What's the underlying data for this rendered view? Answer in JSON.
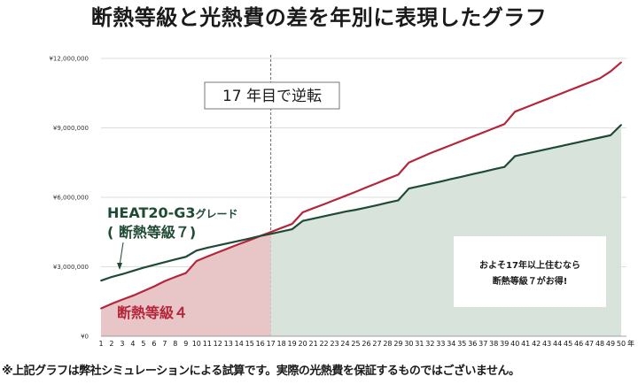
{
  "title": "断熱等級と光熱費の差を年別に表現したグラフ",
  "footnote": "※上記グラフは弊社シミュレーションによる試算です。実際の光熱費を保証するものではございません。",
  "chart_data": {
    "type": "area",
    "categories": [
      "1",
      "2",
      "3",
      "4",
      "5",
      "6",
      "7",
      "8",
      "9",
      "10",
      "11",
      "12",
      "13",
      "14",
      "15",
      "16",
      "17",
      "18",
      "19",
      "20",
      "21",
      "22",
      "23",
      "24",
      "25",
      "26",
      "27",
      "28",
      "29",
      "30",
      "31",
      "32",
      "33",
      "34",
      "35",
      "36",
      "37",
      "38",
      "39",
      "40",
      "41",
      "42",
      "43",
      "44",
      "45",
      "46",
      "47",
      "48",
      "49",
      "50"
    ],
    "x_unit_label": "年",
    "y_tick_labels": [
      "¥0",
      "¥3,000,000",
      "¥6,000,000",
      "¥9,000,000",
      "¥12,000,000"
    ],
    "ylim": [
      0,
      12000000
    ],
    "series": [
      {
        "name": "断熱等級４",
        "color": "#b5263a",
        "fill": "#e8c6c8",
        "values": [
          1200000,
          1400000,
          1580000,
          1750000,
          1950000,
          2150000,
          2380000,
          2560000,
          2730000,
          3250000,
          3440000,
          3620000,
          3800000,
          3980000,
          4150000,
          4330000,
          4500000,
          4680000,
          4850000,
          5350000,
          5530000,
          5700000,
          5880000,
          6060000,
          6240000,
          6430000,
          6610000,
          6800000,
          6980000,
          7500000,
          7700000,
          7900000,
          8080000,
          8260000,
          8440000,
          8620000,
          8800000,
          8980000,
          9160000,
          9700000,
          9880000,
          10060000,
          10240000,
          10420000,
          10600000,
          10780000,
          10960000,
          11140000,
          11440000,
          11830000
        ]
      },
      {
        "name": "HEAT20-G3グレード",
        "name_line2": "( 断熱等級７)",
        "color": "#1f4a34",
        "fill": "#d8e3dc",
        "values": [
          2400000,
          2560000,
          2680000,
          2820000,
          2960000,
          3080000,
          3200000,
          3320000,
          3430000,
          3700000,
          3820000,
          3920000,
          4020000,
          4120000,
          4220000,
          4330000,
          4420000,
          4520000,
          4620000,
          4980000,
          5080000,
          5180000,
          5280000,
          5380000,
          5460000,
          5560000,
          5660000,
          5770000,
          5870000,
          6380000,
          6480000,
          6580000,
          6680000,
          6790000,
          6890000,
          7000000,
          7100000,
          7210000,
          7310000,
          7780000,
          7880000,
          7980000,
          8080000,
          8180000,
          8280000,
          8380000,
          8480000,
          8580000,
          8680000,
          9130000
        ]
      }
    ],
    "crossover_year": 17,
    "annotations": {
      "crossover": "17 年目で逆転",
      "box_line1": "およそ17年以上住むなら",
      "box_line2": "断熱等級７がお得!"
    }
  }
}
